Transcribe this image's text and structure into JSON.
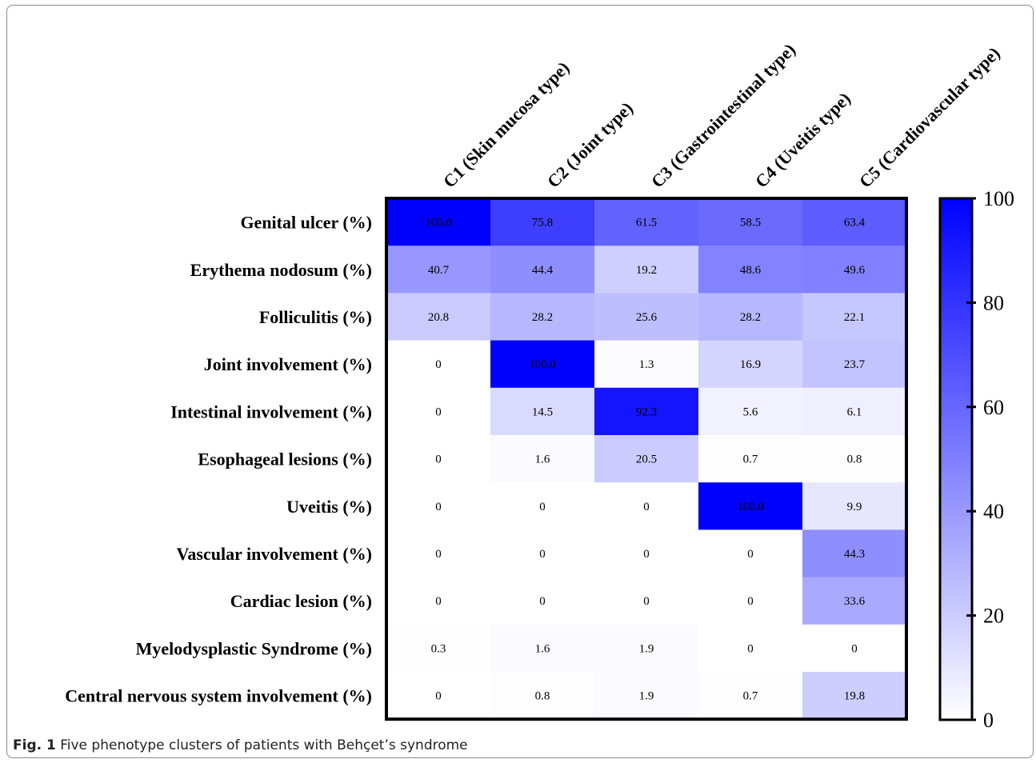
{
  "chart_data": {
    "type": "heatmap",
    "columns": [
      "C1 (Skin mucosa type)",
      "C2 (Joint type)",
      "C3 (Gastrointestinal type)",
      "C4 (Uveitis type)",
      "C5 (Cardiovascular type)"
    ],
    "rows": [
      "Genital ulcer (%)",
      "Erythema nodosum (%)",
      "Folliculitis (%)",
      "Joint involvement (%)",
      "Intestinal involvement (%)",
      "Esophageal lesions (%)",
      "Uveitis (%)",
      "Vascular involvement (%)",
      "Cardiac lesion (%)",
      "Myelodysplastic Syndrome (%)",
      "Central nervous system involvement (%)"
    ],
    "values": [
      [
        "100.0",
        "75.8",
        "61.5",
        "58.5",
        "63.4"
      ],
      [
        "40.7",
        "44.4",
        "19.2",
        "48.6",
        "49.6"
      ],
      [
        "20.8",
        "28.2",
        "25.6",
        "28.2",
        "22.1"
      ],
      [
        "0",
        "100.0",
        "1.3",
        "16.9",
        "23.7"
      ],
      [
        "0",
        "14.5",
        "92.3",
        "5.6",
        "6.1"
      ],
      [
        "0",
        "1.6",
        "20.5",
        "0.7",
        "0.8"
      ],
      [
        "0",
        "0",
        "0",
        "100.0",
        "9.9"
      ],
      [
        "0",
        "0",
        "0",
        "0",
        "44.3"
      ],
      [
        "0",
        "0",
        "0",
        "0",
        "33.6"
      ],
      [
        "0.3",
        "1.6",
        "1.9",
        "0",
        "0"
      ],
      [
        "0",
        "0.8",
        "1.9",
        "0.7",
        "19.8"
      ]
    ],
    "colorbar": {
      "min": 0,
      "max": 100,
      "ticks": [
        "0",
        "20",
        "40",
        "60",
        "80",
        "100"
      ],
      "color_low": "#ffffff",
      "color_high": "#0000ff"
    }
  },
  "caption": {
    "label": "Fig. 1",
    "text": "Five phenotype clusters of patients with Behçet’s syndrome"
  }
}
